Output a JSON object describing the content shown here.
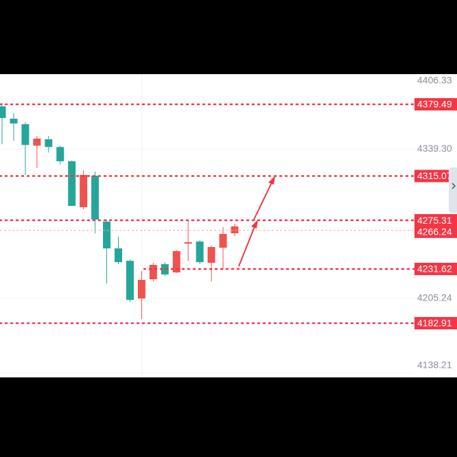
{
  "chart_data": {
    "type": "candlestick",
    "open": [
      4377.64,
      4366.55,
      4361.62,
      4342.34,
      4348.06,
      4341.11,
      4328.34,
      4287.06,
      4315.4,
      4274.12,
      4250.09,
      4238.94,
      4205.1,
      4222.36,
      4235.91,
      4228.52,
      4254.4,
      4256.25,
      4237.15,
      4250.71,
      4263.64
    ],
    "high": [
      4380.72,
      4371.48,
      4363.47,
      4351.14,
      4351.14,
      4342.34,
      4329.0,
      4320.33,
      4319.1,
      4275.97,
      4260.56,
      4240.17,
      4229.75,
      4237.15,
      4237.76,
      4248.85,
      4275.97,
      4257.48,
      4252.56,
      4269.19,
      4272.27
    ],
    "low": [
      4343.57,
      4346.83,
      4316.02,
      4322.18,
      4336.16,
      4325.26,
      4288.0,
      4285.21,
      4263.64,
      4218.66,
      4235.91,
      4201.97,
      4186.62,
      4220.51,
      4225.44,
      4227.9,
      4238.94,
      4235.91,
      4220.51,
      4230.98,
      4261.0
    ],
    "close": [
      4367.17,
      4362.24,
      4342.95,
      4348.68,
      4341.11,
      4328.34,
      4288.29,
      4316.02,
      4275.97,
      4250.09,
      4237.76,
      4203.82,
      4221.74,
      4235.3,
      4226.67,
      4247.62,
      4255.63,
      4237.76,
      4251.32,
      4263.03,
      4269.8
    ],
    "up_color": "#ef5350",
    "down_color": "#26a69a",
    "ylim": [
      4134.23,
      4406.6
    ],
    "yticks": [
      4406.33,
      {
        "value": 4339.3,
        "label": "4339.30"
      },
      4205.24,
      4138.21
    ],
    "price_lines": [
      4379.49,
      4315.07,
      4275.31,
      4231.62,
      4182.91
    ],
    "price_line_color": "#f23645",
    "current_price": 4266.24,
    "grid": true
  }
}
